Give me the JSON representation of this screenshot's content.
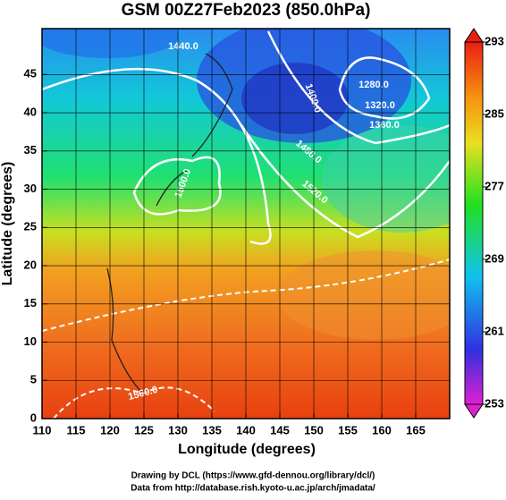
{
  "chart_data": {
    "type": "map",
    "title": "GSM 00Z27Feb2023 (850.0hPa)",
    "x_label": "Longitude (degrees)",
    "y_label": "Latitude  (degrees)",
    "xlim": [
      110,
      170
    ],
    "ylim": [
      0,
      51
    ],
    "xticks": [
      110,
      115,
      120,
      125,
      130,
      135,
      140,
      145,
      150,
      155,
      160,
      165
    ],
    "yticks": [
      0,
      5,
      10,
      15,
      20,
      25,
      30,
      35,
      40,
      45
    ],
    "grid": true,
    "colorbar": {
      "lim": [
        253,
        293
      ],
      "ticks": [
        253,
        261,
        269,
        277,
        285,
        293
      ]
    },
    "contour_labels": [
      "1440.0",
      "1400.0",
      "1280.0",
      "1320.0",
      "1360.0",
      "1480.0",
      "1520.0",
      "1500.0",
      "1560.0"
    ],
    "footer": [
      "Drawing by DCL (https://www.gfd-dennou.org/library/dcl/)",
      "Data from http://database.rish.kyoto-u.ac.jp/arch/jmadata/"
    ]
  }
}
